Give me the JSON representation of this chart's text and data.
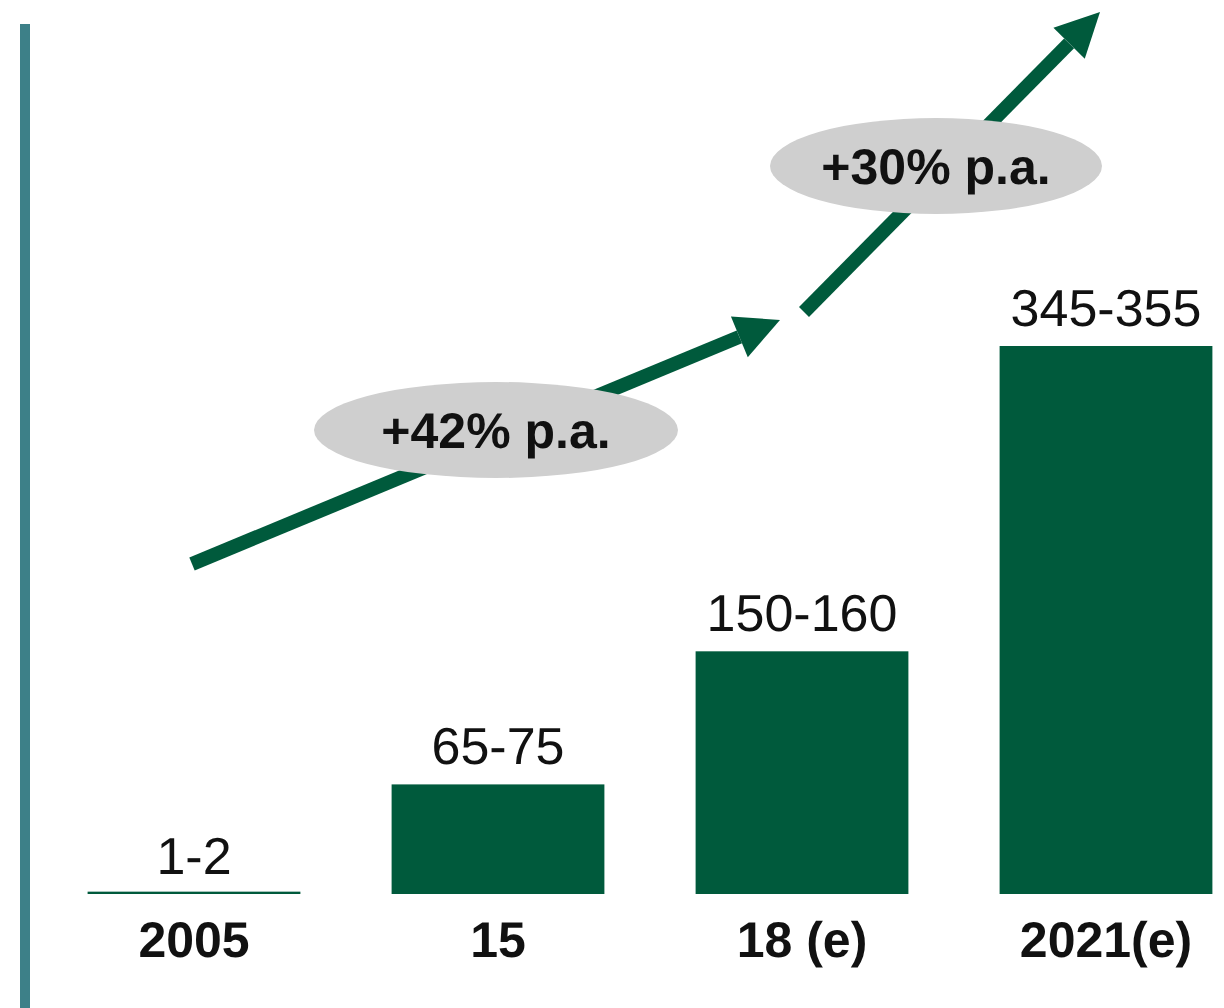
{
  "chart_data": {
    "type": "bar",
    "categories": [
      "2005",
      "15",
      "18 (e)",
      "2021(e)"
    ],
    "values": [
      1.5,
      70,
      155,
      350
    ],
    "value_labels": [
      "1-2",
      "65-75",
      "150-160",
      "345-355"
    ],
    "color": "#005a3c",
    "annotations": [
      "+42% p.a.",
      "+30% p.a."
    ]
  }
}
